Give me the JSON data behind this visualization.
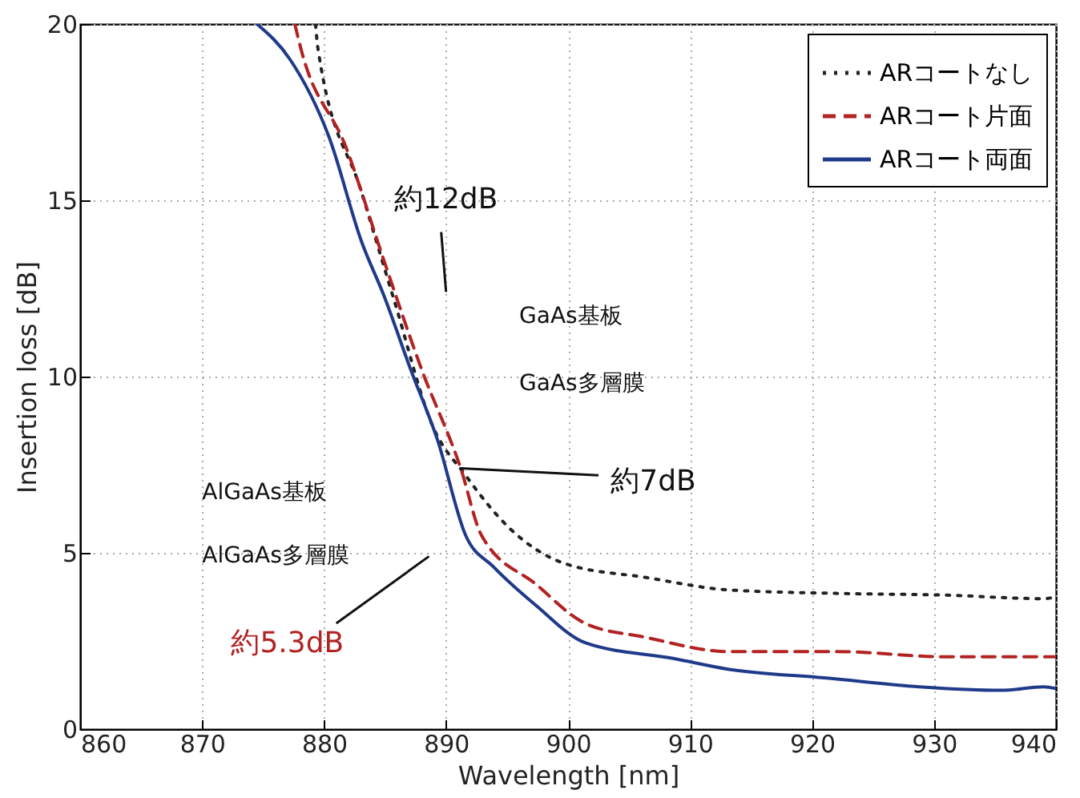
{
  "chart_data": {
    "type": "line",
    "xlabel": "Wavelength [nm]",
    "ylabel": "Insertion loss  [dB]",
    "xlim": [
      860,
      940
    ],
    "ylim": [
      0,
      20
    ],
    "xticks": [
      860,
      870,
      880,
      890,
      900,
      910,
      920,
      930,
      940
    ],
    "yticks": [
      0,
      5,
      10,
      15,
      20
    ],
    "grid": true,
    "legend": "top right",
    "series": [
      {
        "name": "ARコートなし",
        "color": "#222222",
        "line_style": "dotted",
        "x": [
          879.3,
          879.5,
          883.1,
          885.8,
          888.9,
          891.6,
          895.2,
          899.7,
          906.4,
          913.1,
          922,
          931,
          939,
          940
        ],
        "values": [
          20,
          19.3,
          15.2,
          12.1,
          8.6,
          7.2,
          5.7,
          4.7,
          4.3,
          3.95,
          3.85,
          3.8,
          3.7,
          3.75
        ]
      },
      {
        "name": "ARコート片面",
        "color": "#b22222",
        "line_style": "dashed",
        "x": [
          877.6,
          878.1,
          881.8,
          884.9,
          888,
          891.2,
          892.9,
          897.4,
          901.4,
          906.4,
          913.1,
          922,
          931,
          939,
          940
        ],
        "values": [
          20,
          19.3,
          16.5,
          13.3,
          10.2,
          7.4,
          5.5,
          4.1,
          3.0,
          2.6,
          2.2,
          2.2,
          2.05,
          2.05,
          2.05
        ]
      },
      {
        "name": "ARコート両面",
        "color": "#1f3a8a",
        "line_style": "solid",
        "x": [
          874.5,
          877.2,
          880.4,
          883.1,
          884.9,
          887.1,
          889.3,
          891.6,
          893.9,
          897.4,
          901.4,
          908.7,
          913.1,
          921.2,
          928.8,
          935.5,
          939,
          940
        ],
        "values": [
          20,
          19.0,
          16.8,
          13.8,
          12.3,
          10.2,
          8.2,
          5.5,
          4.6,
          3.5,
          2.45,
          2.0,
          1.7,
          1.45,
          1.2,
          1.1,
          1.2,
          1.15
        ]
      }
    ],
    "annotations": [
      "約12dB",
      {
        "text": "約7dB",
        "x": 891.2,
        "y": 7.4
      },
      "約5.3dB",
      "GaAs基板",
      "GaAs多層膜",
      "AlGaAs基板",
      "AlGaAs多層膜"
    ]
  }
}
